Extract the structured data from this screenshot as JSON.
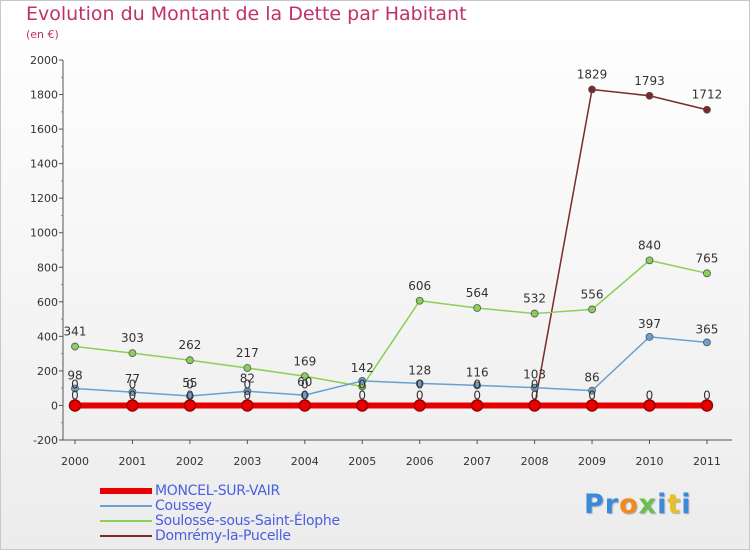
{
  "title": "Evolution du Montant de la Dette par Habitant",
  "subtitle": "(en €)",
  "logo": "Proxiti",
  "chart_data": {
    "type": "line",
    "x": [
      "2000",
      "2001",
      "2002",
      "2003",
      "2004",
      "2005",
      "2006",
      "2007",
      "2008",
      "2009",
      "2010",
      "2011"
    ],
    "ylim": [
      -200,
      2000
    ],
    "yticks": [
      -200,
      0,
      200,
      400,
      600,
      800,
      1000,
      1200,
      1400,
      1600,
      1800,
      2000
    ],
    "grid": false,
    "legend": "bottom-left",
    "series": [
      {
        "name": "MONCEL-SUR-VAIR",
        "color": "#e60000",
        "values": [
          0,
          0,
          0,
          0,
          0,
          0,
          0,
          0,
          0,
          0,
          0,
          0
        ],
        "labels": [
          "0",
          "0",
          "0",
          "0",
          "0",
          "0",
          "0",
          "0",
          "0",
          "0",
          "0",
          "0"
        ]
      },
      {
        "name": "Coussey",
        "color": "#6aa0d0",
        "values": [
          98,
          77,
          55,
          82,
          60,
          142,
          128,
          116,
          103,
          86,
          397,
          365
        ],
        "labels": [
          "98",
          "77",
          "55",
          "82",
          "60",
          "142",
          "128",
          "116",
          "103",
          "86",
          "397",
          "365"
        ]
      },
      {
        "name": "Soulosse-sous-Saint-Élophe",
        "color": "#88d058",
        "values": [
          341,
          303,
          262,
          217,
          169,
          110,
          606,
          564,
          532,
          556,
          840,
          765
        ],
        "labels": [
          "341",
          "303",
          "262",
          "217",
          "169",
          "",
          "606",
          "564",
          "532",
          "556",
          "840",
          "765"
        ]
      },
      {
        "name": "Domrémy-la-Pucelle",
        "color": "#7a2a2a",
        "values": [
          0,
          0,
          0,
          0,
          0,
          0,
          0,
          0,
          0,
          1829,
          1793,
          1712
        ],
        "labels": [
          "0",
          "0",
          "0",
          "0",
          "0",
          "0",
          "0",
          "0",
          "0",
          "1829",
          "1793",
          "1712"
        ]
      }
    ]
  }
}
